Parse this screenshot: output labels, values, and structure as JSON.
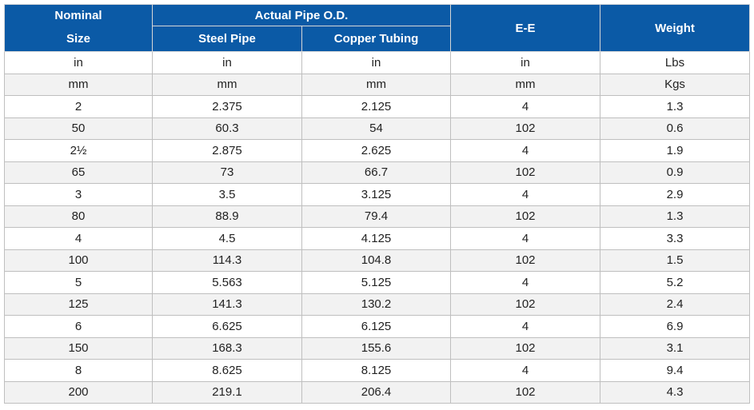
{
  "header": {
    "nominal_line1": "Nominal",
    "nominal_line2": "Size",
    "actual_od": "Actual Pipe O.D.",
    "steel_pipe": "Steel Pipe",
    "copper_tubing": "Copper Tubing",
    "ee": "E-E",
    "weight": "Weight"
  },
  "rows": [
    [
      "in",
      "in",
      "in",
      "in",
      "Lbs"
    ],
    [
      "mm",
      "mm",
      "mm",
      "mm",
      "Kgs"
    ],
    [
      "2",
      "2.375",
      "2.125",
      "4",
      "1.3"
    ],
    [
      "50",
      "60.3",
      "54",
      "102",
      "0.6"
    ],
    [
      "2½",
      "2.875",
      "2.625",
      "4",
      "1.9"
    ],
    [
      "65",
      "73",
      "66.7",
      "102",
      "0.9"
    ],
    [
      "3",
      "3.5",
      "3.125",
      "4",
      "2.9"
    ],
    [
      "80",
      "88.9",
      "79.4",
      "102",
      "1.3"
    ],
    [
      "4",
      "4.5",
      "4.125",
      "4",
      "3.3"
    ],
    [
      "100",
      "114.3",
      "104.8",
      "102",
      "1.5"
    ],
    [
      "5",
      "5.563",
      "5.125",
      "4",
      "5.2"
    ],
    [
      "125",
      "141.3",
      "130.2",
      "102",
      "2.4"
    ],
    [
      "6",
      "6.625",
      "6.125",
      "4",
      "6.9"
    ],
    [
      "150",
      "168.3",
      "155.6",
      "102",
      "3.1"
    ],
    [
      "8",
      "8.625",
      "8.125",
      "4",
      "9.4"
    ],
    [
      "200",
      "219.1",
      "206.4",
      "102",
      "4.3"
    ]
  ]
}
